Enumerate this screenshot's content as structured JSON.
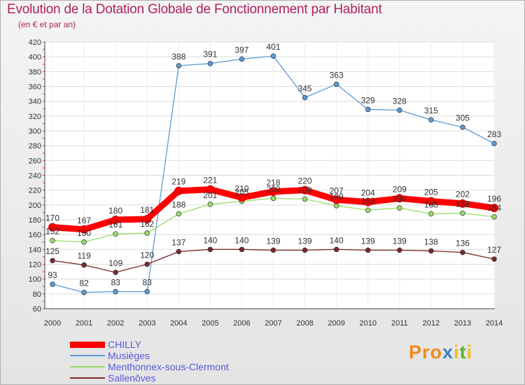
{
  "header": {
    "title": "Evolution de la Dotation Globale de Fonctionnement par Habitant",
    "subtitle": "(en € et par an)"
  },
  "logo": {
    "p1": "Pro",
    "x": "x",
    "i1": "i",
    "t": "t",
    "i2": "i"
  },
  "chart_data": {
    "type": "line",
    "x": [
      "2000",
      "2001",
      "2002",
      "2003",
      "2004",
      "2005",
      "2006",
      "2007",
      "2008",
      "2009",
      "2010",
      "2011",
      "2012",
      "2013",
      "2014"
    ],
    "ylim": [
      60,
      420
    ],
    "yticks": [
      60,
      80,
      100,
      120,
      140,
      160,
      180,
      200,
      220,
      240,
      260,
      280,
      300,
      320,
      340,
      360,
      380,
      400,
      420
    ],
    "grid": true,
    "legend_position": "bottom-left",
    "series": [
      {
        "name": "CHILLY",
        "color": "#ff0000",
        "values": [
          170,
          167,
          180,
          181,
          219,
          221,
          210,
          218,
          220,
          207,
          204,
          209,
          205,
          202,
          196
        ]
      },
      {
        "name": "Musièges",
        "color": "#5b9bd5",
        "values": [
          93,
          82,
          83,
          83,
          388,
          391,
          397,
          401,
          345,
          363,
          329,
          328,
          315,
          305,
          283
        ]
      },
      {
        "name": "Menthonnex-sous-Clermont",
        "color": "#99dd66",
        "values": [
          152,
          150,
          161,
          162,
          188,
          201,
          205,
          209,
          208,
          199,
          193,
          196,
          188,
          189,
          184
        ]
      },
      {
        "name": "Sallenôves",
        "color": "#7a2a2a",
        "values": [
          125,
          119,
          109,
          120,
          137,
          140,
          140,
          139,
          139,
          140,
          139,
          139,
          138,
          136,
          127
        ]
      }
    ]
  }
}
